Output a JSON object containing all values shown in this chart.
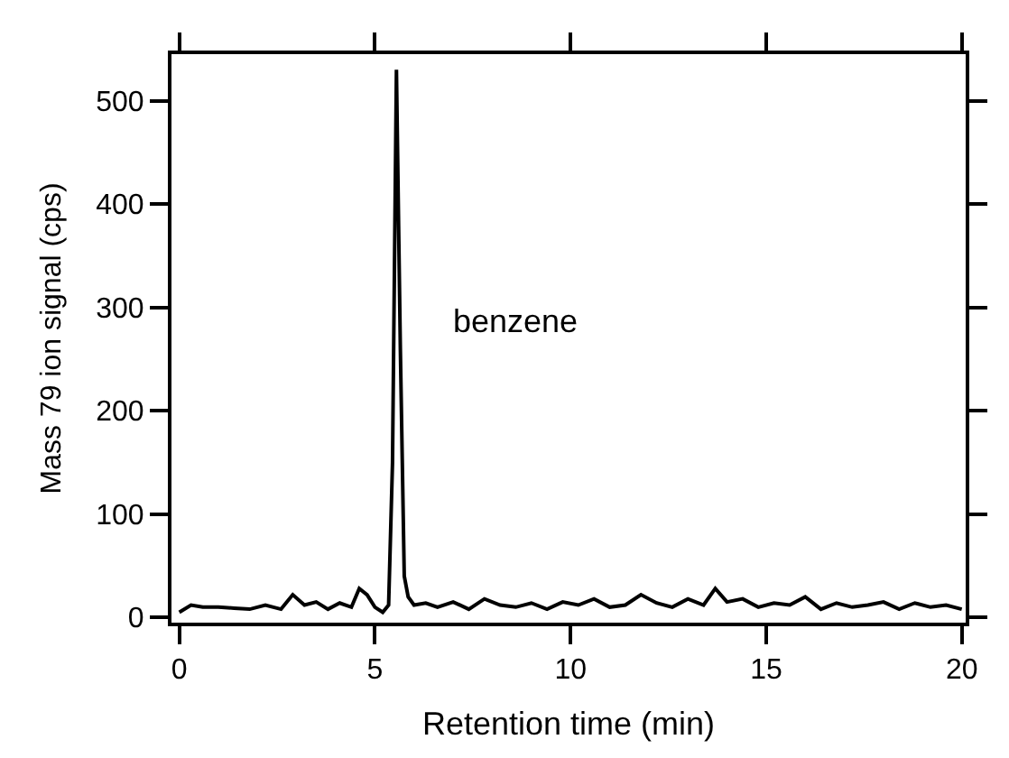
{
  "chart_data": {
    "type": "line",
    "xlabel": "Retention time (min)",
    "ylabel": "Mass 79 ion signal (cps)",
    "annotations": [
      "benzene"
    ],
    "x": [
      0,
      0.3,
      0.6,
      1,
      1.4,
      1.8,
      2.2,
      2.6,
      2.9,
      3.2,
      3.5,
      3.8,
      4.1,
      4.4,
      4.6,
      4.8,
      5.0,
      5.2,
      5.35,
      5.45,
      5.55,
      5.65,
      5.75,
      5.85,
      6.0,
      6.3,
      6.6,
      7,
      7.4,
      7.8,
      8.2,
      8.6,
      9,
      9.4,
      9.8,
      10.2,
      10.6,
      11,
      11.4,
      11.8,
      12.2,
      12.6,
      13,
      13.4,
      13.7,
      14,
      14.4,
      14.8,
      15.2,
      15.6,
      16,
      16.4,
      16.8,
      17.2,
      17.6,
      18,
      18.4,
      18.8,
      19.2,
      19.6,
      20
    ],
    "series": [
      {
        "color": "#000000",
        "values": [
          5,
          12,
          10,
          10,
          9,
          8,
          12,
          8,
          22,
          12,
          15,
          8,
          14,
          10,
          28,
          22,
          10,
          5,
          12,
          150,
          530,
          260,
          40,
          20,
          12,
          14,
          10,
          15,
          8,
          18,
          12,
          10,
          14,
          8,
          15,
          12,
          18,
          10,
          12,
          22,
          14,
          10,
          18,
          12,
          28,
          15,
          18,
          10,
          14,
          12,
          20,
          8,
          14,
          10,
          12,
          15,
          8,
          14,
          10,
          12,
          8
        ]
      }
    ],
    "xlim": [
      -0.2,
      20.1
    ],
    "ylim": [
      -5,
      545
    ],
    "xticks": [
      0,
      5,
      10,
      15,
      20
    ],
    "yticks": [
      0,
      100,
      200,
      300,
      400,
      500
    ],
    "marker": "none",
    "line_style": "solid"
  }
}
